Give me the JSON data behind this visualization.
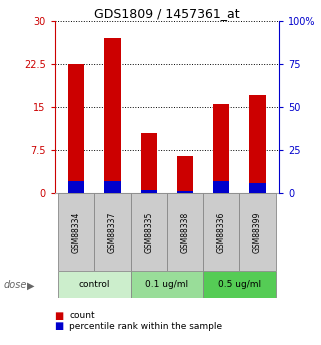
{
  "title": "GDS1809 / 1457361_at",
  "samples": [
    "GSM88334",
    "GSM88337",
    "GSM88335",
    "GSM88338",
    "GSM88336",
    "GSM88399"
  ],
  "count_values": [
    22.5,
    27.0,
    10.5,
    6.5,
    15.5,
    17.0
  ],
  "percentile_values": [
    7.0,
    7.0,
    2.0,
    1.5,
    7.0,
    6.0
  ],
  "dose_groups": [
    {
      "label": "control",
      "span": [
        0,
        2
      ],
      "color": "#cceecc"
    },
    {
      "label": "0.1 ug/ml",
      "span": [
        2,
        4
      ],
      "color": "#99dd99"
    },
    {
      "label": "0.5 ug/ml",
      "span": [
        4,
        6
      ],
      "color": "#55cc55"
    }
  ],
  "left_ylim": [
    0,
    30
  ],
  "right_ylim": [
    0,
    100
  ],
  "left_yticks": [
    0,
    7.5,
    15,
    22.5,
    30
  ],
  "right_yticks": [
    0,
    25,
    50,
    75,
    100
  ],
  "right_yticklabels": [
    "0",
    "25",
    "50",
    "75",
    "100%"
  ],
  "left_ycolor": "#cc0000",
  "right_ycolor": "#0000cc",
  "bar_color_count": "#cc0000",
  "bar_color_pct": "#0000cc",
  "sample_box_color": "#cccccc",
  "background_color": "#ffffff",
  "dose_label": "dose",
  "dose_label_color": "#666666",
  "legend_count": "count",
  "legend_pct": "percentile rank within the sample"
}
